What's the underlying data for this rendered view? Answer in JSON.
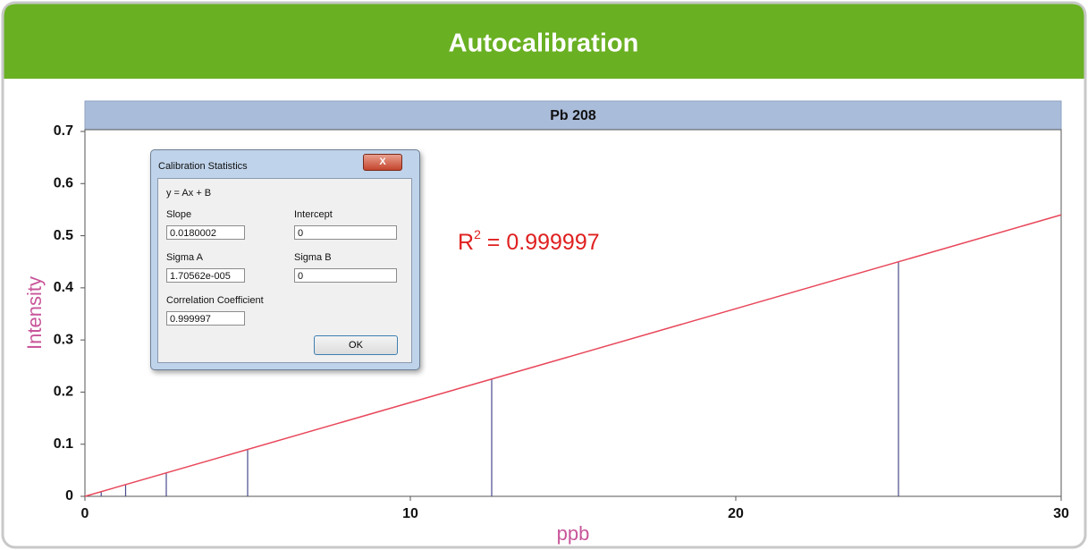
{
  "header": {
    "title": "Autocalibration"
  },
  "chart_data": {
    "type": "line",
    "title": "Pb 208",
    "xlabel": "ppb",
    "ylabel": "Intensity",
    "xlim": [
      0,
      30
    ],
    "xticks": [
      0,
      10,
      20,
      30
    ],
    "ylim": [
      0,
      0.7
    ],
    "yticks": [
      0,
      0.1,
      0.2,
      0.3,
      0.4,
      0.5,
      0.6,
      0.7
    ],
    "grid": false,
    "standards": {
      "x": [
        0.5,
        1.25,
        2.5,
        5,
        12.5,
        25
      ],
      "values": [
        0.009,
        0.0225,
        0.045,
        0.09,
        0.225,
        0.45
      ],
      "color": "#4a4a8c"
    },
    "fit": {
      "x": [
        0,
        30
      ],
      "values": [
        0,
        0.54
      ],
      "color": "#e8475a"
    },
    "annotation": {
      "base": "R",
      "sup": "2",
      "rest": " = 0.999997",
      "color": "#e02020"
    }
  },
  "dialog": {
    "title": "Calibration Statistics",
    "close": "X",
    "equation": "y = Ax + B",
    "slope_label": "Slope",
    "slope": "0.0180002",
    "intercept_label": "Intercept",
    "intercept": "0",
    "sigma_a_label": "Sigma A",
    "sigma_a": "1.70562e-005",
    "sigma_b_label": "Sigma B",
    "sigma_b": "0",
    "corr_label": "Correlation Coefficient",
    "corr": "0.999997",
    "ok": "OK"
  }
}
